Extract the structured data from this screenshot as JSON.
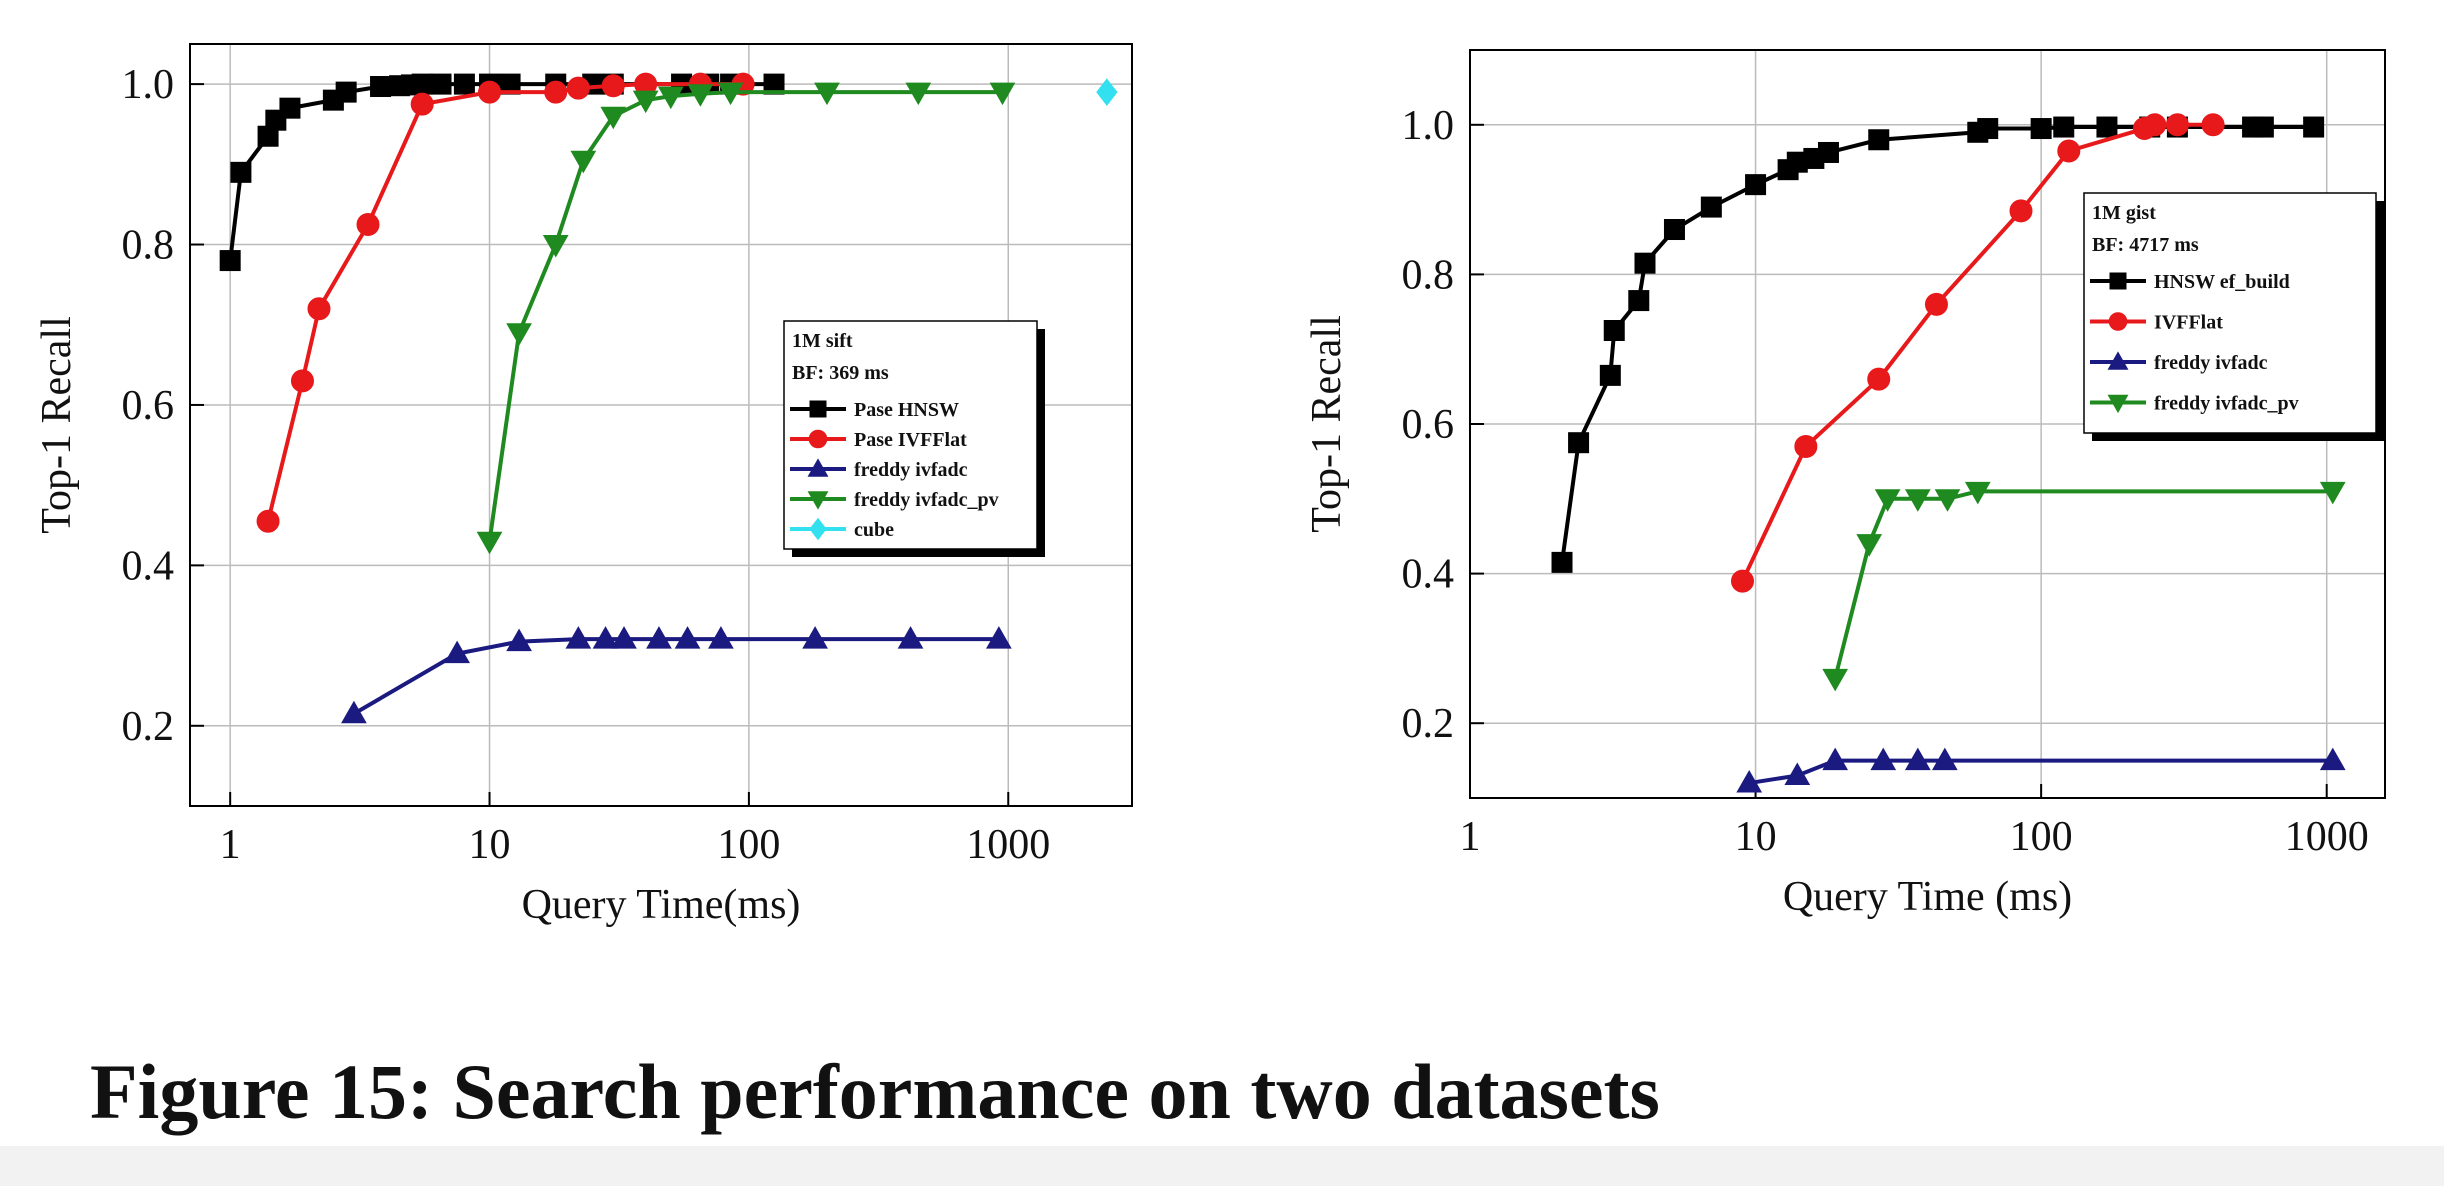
{
  "caption": "Figure 15: Search performance on two datasets",
  "chart_data": [
    {
      "type": "line",
      "xscale": "log",
      "grid": true,
      "legend": "center right",
      "legend_title": "1M sift",
      "legend_subtitle": "BF: 369 ms",
      "xlabel": "Query Time(ms)",
      "ylabel": "Top-1 Recall",
      "xlim": [
        0.7,
        3000
      ],
      "ylim": [
        0.1,
        1.05
      ],
      "xticks": [
        1,
        10,
        100,
        1000
      ],
      "yticks": [
        0.2,
        0.4,
        0.6,
        0.8,
        {
          "value": 1,
          "label": "1.0"
        }
      ],
      "series": [
        {
          "name": "Pase HNSW",
          "color": "#000000",
          "marker": "square",
          "x": [
            1,
            1.1,
            1.4,
            1.5,
            1.7,
            2.5,
            2.8,
            3.8,
            4.5,
            5,
            5.5,
            6.5,
            8,
            10,
            12,
            18,
            25,
            30,
            55,
            70,
            85,
            125
          ],
          "values": [
            0.78,
            0.89,
            0.935,
            0.955,
            0.97,
            0.98,
            0.99,
            0.997,
            0.998,
            0.999,
            1,
            1,
            1,
            1,
            1,
            1,
            1,
            1,
            1,
            1,
            1,
            1
          ]
        },
        {
          "name": "Pase IVFFlat",
          "color": "#e8191b",
          "marker": "circle",
          "x": [
            1.4,
            1.9,
            2.2,
            3.4,
            5.5,
            10,
            18,
            22,
            30,
            40,
            65,
            95
          ],
          "values": [
            0.455,
            0.63,
            0.72,
            0.825,
            0.975,
            0.99,
            0.99,
            0.995,
            0.998,
            1,
            1,
            1
          ]
        },
        {
          "name": "freddy ivfadc",
          "color": "#1a1a80",
          "marker": "triangle-up",
          "x": [
            3,
            7.5,
            13,
            22,
            28,
            33,
            45,
            58,
            78,
            180,
            420,
            920
          ],
          "values": [
            0.215,
            0.29,
            0.305,
            0.308,
            0.308,
            0.308,
            0.308,
            0.308,
            0.308,
            0.308,
            0.308,
            0.308
          ]
        },
        {
          "name": "freddy ivfadc_pv",
          "color": "#1f8a1f",
          "marker": "triangle-down",
          "x": [
            10,
            13,
            18,
            23,
            30,
            40,
            50,
            65,
            85,
            200,
            450,
            950
          ],
          "values": [
            0.43,
            0.69,
            0.8,
            0.905,
            0.96,
            0.98,
            0.985,
            0.988,
            0.99,
            0.99,
            0.99,
            0.99
          ]
        },
        {
          "name": "cube",
          "color": "#33e0f0",
          "marker": "diamond",
          "x": [
            2400
          ],
          "values": [
            0.99
          ]
        }
      ]
    },
    {
      "type": "line",
      "xscale": "log",
      "grid": true,
      "legend": "upper right",
      "legend_title": "1M gist",
      "legend_subtitle": "BF: 4717 ms",
      "xlabel": "Query Time (ms)",
      "ylabel": "Top-1 Recall",
      "xlim": [
        1,
        1600
      ],
      "ylim": [
        0.1,
        1.1
      ],
      "xticks": [
        1,
        10,
        100,
        1000
      ],
      "yticks": [
        0.2,
        0.4,
        0.6,
        0.8,
        {
          "value": 1,
          "label": "1.0"
        }
      ],
      "series": [
        {
          "name": "HNSW ef_build",
          "color": "#000000",
          "marker": "square",
          "x": [
            2.1,
            2.4,
            3.1,
            3.2,
            3.9,
            4.1,
            5.2,
            7,
            10,
            13,
            14,
            16,
            18,
            27,
            60,
            65,
            100,
            120,
            170,
            240,
            300,
            550,
            600,
            900
          ],
          "values": [
            0.415,
            0.575,
            0.665,
            0.725,
            0.765,
            0.815,
            0.86,
            0.89,
            0.92,
            0.94,
            0.95,
            0.955,
            0.963,
            0.98,
            0.99,
            0.995,
            0.995,
            0.997,
            0.997,
            0.997,
            0.997,
            0.997,
            0.997,
            0.997
          ]
        },
        {
          "name": "IVFFlat",
          "color": "#e8191b",
          "marker": "circle",
          "x": [
            9,
            15,
            27,
            43,
            85,
            125,
            230,
            250,
            300,
            400
          ],
          "values": [
            0.39,
            0.57,
            0.66,
            0.76,
            0.885,
            0.965,
            0.995,
            1,
            1,
            1
          ]
        },
        {
          "name": "freddy ivfadc",
          "color": "#1a1a80",
          "marker": "triangle-up",
          "x": [
            9.5,
            14,
            19,
            28,
            37,
            46,
            1050
          ],
          "values": [
            0.12,
            0.13,
            0.15,
            0.15,
            0.15,
            0.15,
            0.15
          ]
        },
        {
          "name": "freddy ivfadc_pv",
          "color": "#1f8a1f",
          "marker": "triangle-down",
          "x": [
            19,
            25,
            29,
            37,
            47,
            60,
            1050
          ],
          "values": [
            0.26,
            0.44,
            0.5,
            0.5,
            0.5,
            0.51,
            0.51
          ]
        }
      ]
    }
  ]
}
